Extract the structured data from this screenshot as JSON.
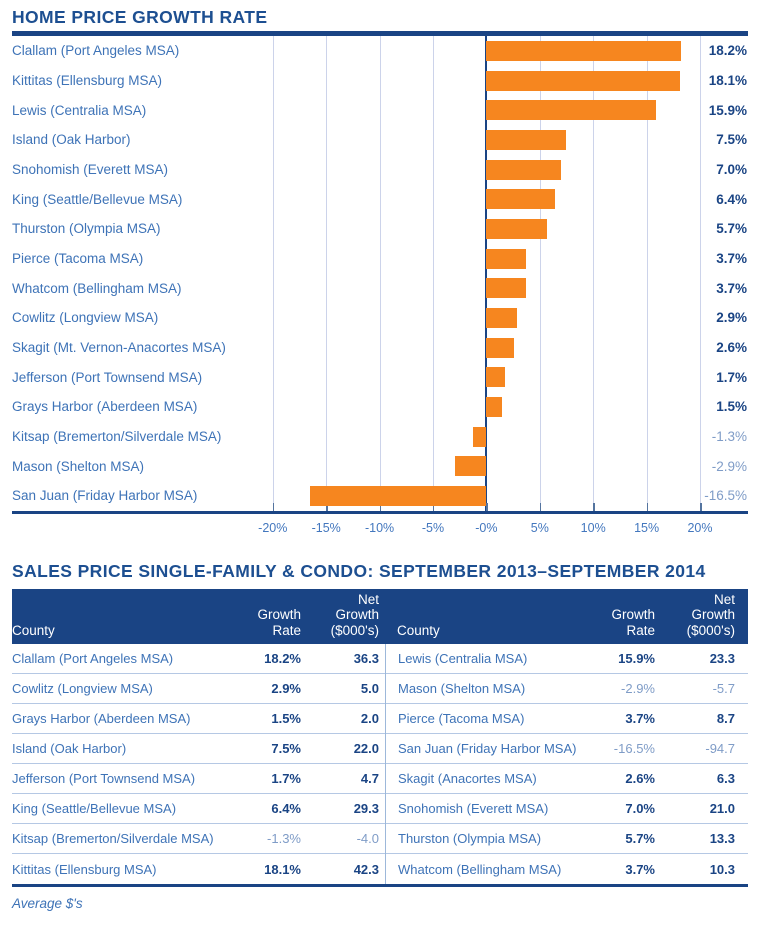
{
  "page": {
    "chart_title": "HOME PRICE GROWTH RATE",
    "table_title": "SALES PRICE SINGLE-FAMILY & CONDO: SEPTEMBER 2013–SEPTEMBER 2014",
    "footnote": "Average $'s"
  },
  "colors": {
    "navy": "#1a4484",
    "title_blue": "#1d4f91",
    "label_blue": "#3e73b7",
    "muted_blue": "#7f9cc7",
    "bar_orange": "#f6861f",
    "gridline": "#ccd3ea"
  },
  "chart_data": {
    "type": "bar",
    "orientation": "horizontal",
    "title": "HOME PRICE GROWTH RATE",
    "unit": "percent",
    "categories": [
      "Clallam (Port Angeles MSA)",
      "Kittitas (Ellensburg MSA)",
      "Lewis (Centralia MSA)",
      "Island (Oak Harbor)",
      "Snohomish (Everett MSA)",
      "King (Seattle/Bellevue MSA)",
      "Thurston (Olympia MSA)",
      "Pierce (Tacoma MSA)",
      "Whatcom (Bellingham MSA)",
      "Cowlitz (Longview MSA)",
      "Skagit (Mt. Vernon-Anacortes MSA)",
      "Jefferson (Port Townsend MSA)",
      "Grays Harbor (Aberdeen MSA)",
      "Kitsap (Bremerton/Silverdale MSA)",
      "Mason (Shelton MSA)",
      "San Juan (Friday Harbor MSA)"
    ],
    "values": [
      18.2,
      18.1,
      15.9,
      7.5,
      7.0,
      6.4,
      5.7,
      3.7,
      3.7,
      2.9,
      2.6,
      1.7,
      1.5,
      -1.3,
      -2.9,
      -16.5
    ],
    "value_labels": [
      "18.2%",
      "18.1%",
      "15.9%",
      "7.5%",
      "7.0%",
      "6.4%",
      "5.7%",
      "3.7%",
      "3.7%",
      "2.9%",
      "2.6%",
      "1.7%",
      "1.5%",
      "-1.3%",
      "-2.9%",
      "-16.5%"
    ],
    "tick_labels": [
      "-20%",
      "-15%",
      "-10%",
      "-5%",
      "-0%",
      "5%",
      "10%",
      "15%",
      "20%"
    ],
    "tick_values": [
      -20,
      -15,
      -10,
      -5,
      0,
      5,
      10,
      15,
      20
    ],
    "xlim": [
      -22.6,
      20
    ],
    "grid": true,
    "bar_color": "#f6861f"
  },
  "table": {
    "header": {
      "county": "County",
      "growth_line1": "Growth",
      "growth_line2": "Rate",
      "net_line1": "Net",
      "net_line2": "Growth",
      "net_line3": "($000's)"
    },
    "left_rows": [
      {
        "county": "Clallam (Port Angeles MSA)",
        "growth": "18.2%",
        "net": "36.3",
        "negative": false
      },
      {
        "county": "Cowlitz (Longview MSA)",
        "growth": "2.9%",
        "net": "5.0",
        "negative": false
      },
      {
        "county": "Grays Harbor (Aberdeen MSA)",
        "growth": "1.5%",
        "net": "2.0",
        "negative": false
      },
      {
        "county": "Island (Oak Harbor)",
        "growth": "7.5%",
        "net": "22.0",
        "negative": false
      },
      {
        "county": "Jefferson (Port Townsend MSA)",
        "growth": "1.7%",
        "net": "4.7",
        "negative": false
      },
      {
        "county": "King (Seattle/Bellevue MSA)",
        "growth": "6.4%",
        "net": "29.3",
        "negative": false
      },
      {
        "county": "Kitsap (Bremerton/Silverdale MSA)",
        "growth": "-1.3%",
        "net": "-4.0",
        "negative": true
      },
      {
        "county": "Kittitas (Ellensburg MSA)",
        "growth": "18.1%",
        "net": "42.3",
        "negative": false
      }
    ],
    "right_rows": [
      {
        "county": "Lewis (Centralia MSA)",
        "growth": "15.9%",
        "net": "23.3",
        "negative": false
      },
      {
        "county": "Mason (Shelton MSA)",
        "growth": "-2.9%",
        "net": "-5.7",
        "negative": true
      },
      {
        "county": "Pierce (Tacoma MSA)",
        "growth": "3.7%",
        "net": "8.7",
        "negative": false
      },
      {
        "county": "San Juan (Friday Harbor MSA)",
        "growth": "-16.5%",
        "net": "-94.7",
        "negative": true
      },
      {
        "county": "Skagit (Anacortes MSA)",
        "growth": "2.6%",
        "net": "6.3",
        "negative": false
      },
      {
        "county": "Snohomish (Everett MSA)",
        "growth": "7.0%",
        "net": "21.0",
        "negative": false
      },
      {
        "county": "Thurston (Olympia MSA)",
        "growth": "5.7%",
        "net": "13.3",
        "negative": false
      },
      {
        "county": "Whatcom (Bellingham MSA)",
        "growth": "3.7%",
        "net": "10.3",
        "negative": false
      }
    ]
  }
}
